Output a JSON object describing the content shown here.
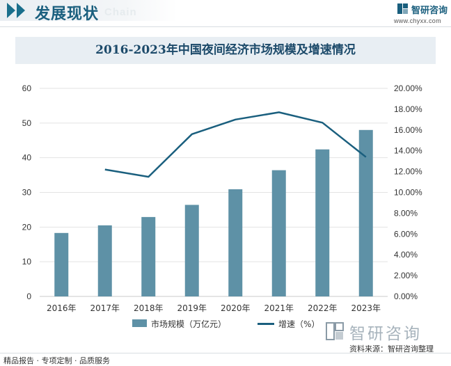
{
  "header": {
    "section_title": "发展现状",
    "section_subtitle": "Chain",
    "logo_name": "智研咨询",
    "logo_url": "www.chyxx.com",
    "icon": "chevron-double-icon"
  },
  "chart_data": {
    "type": "bar",
    "title": "2016-2023年中国夜间经济市场规模及增速情况",
    "categories": [
      "2016年",
      "2017年",
      "2018年",
      "2019年",
      "2020年",
      "2021年",
      "2022年",
      "2023年"
    ],
    "series": [
      {
        "name": "市场规模（万亿元）",
        "type": "bar",
        "axis": "left",
        "color": "#5e91a6",
        "values": [
          18.3,
          20.5,
          22.9,
          26.4,
          30.9,
          36.4,
          42.4,
          48.0
        ]
      },
      {
        "name": "增速（%）",
        "type": "line",
        "axis": "right",
        "color": "#1a5f7e",
        "values": [
          null,
          12.2,
          11.5,
          15.6,
          17.0,
          17.7,
          16.7,
          13.4
        ]
      }
    ],
    "y_left": {
      "min": 0,
      "max": 60,
      "ticks": [
        0,
        10,
        20,
        30,
        40,
        50,
        60
      ]
    },
    "y_right": {
      "min": 0,
      "max": 20,
      "ticks": [
        "0.00%",
        "2.00%",
        "4.00%",
        "6.00%",
        "8.00%",
        "10.00%",
        "12.00%",
        "14.00%",
        "16.00%",
        "18.00%",
        "20.00%"
      ]
    },
    "grid": "horizontal",
    "legend_position": "bottom"
  },
  "watermark": {
    "text": "智研咨询"
  },
  "footer": {
    "left_text": "精品报告 · 专项定制 · 品质服务",
    "source_text": "资料来源：智研咨询整理"
  }
}
